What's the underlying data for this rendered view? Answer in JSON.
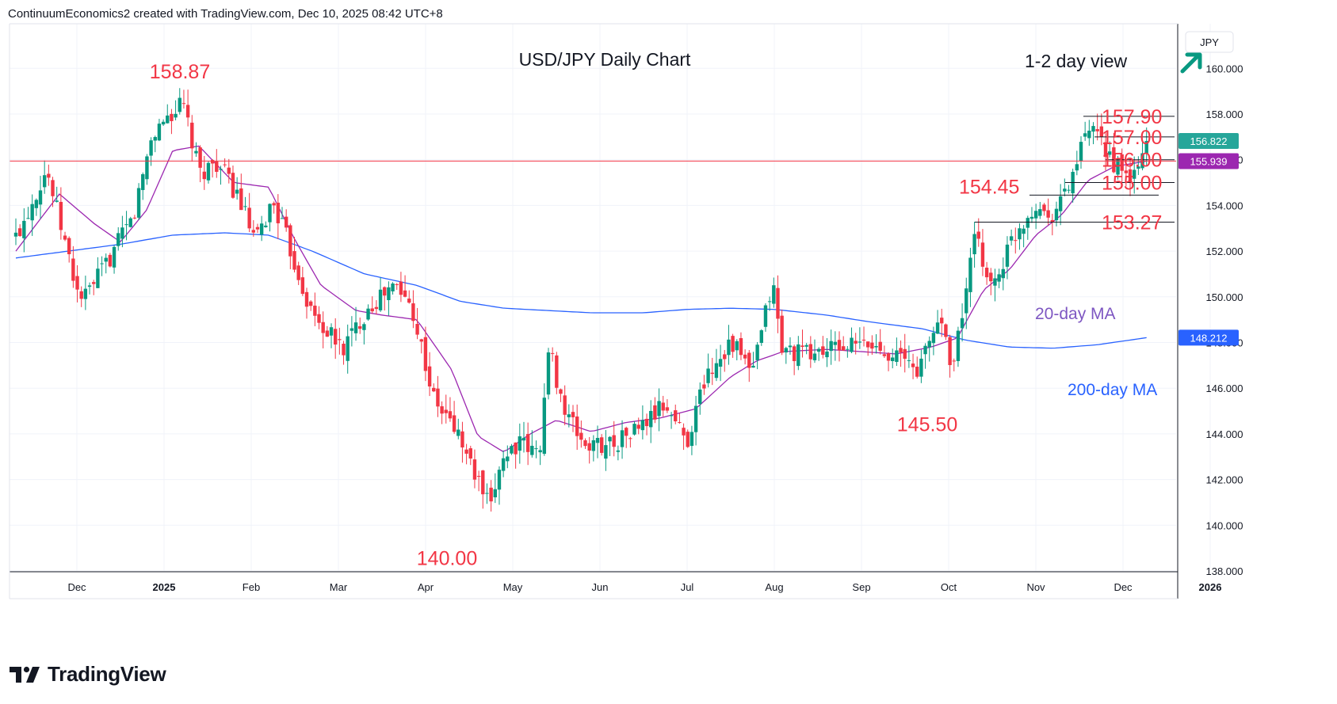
{
  "header": {
    "attribution": "ContinuumEconomics2 created with TradingView.com, Dec 10, 2025 08:42 UTC+8"
  },
  "brand": {
    "name": "TradingView",
    "logo_icon": "tradingview-logo-icon"
  },
  "chart_data": {
    "type": "candlestick",
    "title": "USD/JPY Daily Chart",
    "subtitle": "1-2 day view",
    "view_direction_icon": "arrow-up-right-icon",
    "currency_label": "JPY",
    "ylim": [
      138.0,
      161.3
    ],
    "y_ticks": [
      "138.000",
      "140.000",
      "142.000",
      "144.000",
      "146.000",
      "148.000",
      "150.000",
      "152.000",
      "154.000",
      "156.000",
      "158.000",
      "160.000"
    ],
    "x_ticks": [
      {
        "label": "Dec",
        "month_index": 0.7
      },
      {
        "label": "2025",
        "month_index": 1.7
      },
      {
        "label": "Feb",
        "month_index": 2.7
      },
      {
        "label": "Mar",
        "month_index": 3.7
      },
      {
        "label": "Apr",
        "month_index": 4.7
      },
      {
        "label": "May",
        "month_index": 5.7
      },
      {
        "label": "Jun",
        "month_index": 6.7
      },
      {
        "label": "Jul",
        "month_index": 7.7
      },
      {
        "label": "Aug",
        "month_index": 8.7
      },
      {
        "label": "Sep",
        "month_index": 9.7
      },
      {
        "label": "Oct",
        "month_index": 10.7
      },
      {
        "label": "Nov",
        "month_index": 11.7
      },
      {
        "label": "Dec",
        "month_index": 12.7
      },
      {
        "label": "2026",
        "month_index": 13.7
      }
    ],
    "price_close": {
      "text": "156.822",
      "value": 156.822,
      "color": "#26a69a"
    },
    "price_ma20": {
      "text": "155.939",
      "value": 155.939,
      "color": "#9c27b0"
    },
    "price_ma200": {
      "text": "148.212",
      "value": 148.212,
      "color": "#2962ff"
    },
    "horizontal_line": {
      "value": 155.94,
      "color": "#f23645"
    },
    "colors": {
      "up": "#089981",
      "down": "#f23645",
      "ma20": "#9c27b0",
      "ma200": "#2962ff",
      "annotation": "#f23645",
      "ma20_label": "#7e57c2",
      "ma200_label": "#2962ff",
      "arrow": "#089981",
      "grid": "#f0f3fa"
    },
    "annotations": [
      {
        "text": "158.87",
        "value": 158.87,
        "kind": "high"
      },
      {
        "text": "140.00",
        "value": 140.0,
        "kind": "low"
      },
      {
        "text": "145.50",
        "value": 145.5,
        "kind": "low"
      },
      {
        "text": "154.45",
        "value": 154.45,
        "kind": "level"
      },
      {
        "text": "157.90",
        "value": 157.9,
        "kind": "resistance"
      },
      {
        "text": "157.00",
        "value": 157.0,
        "kind": "resistance"
      },
      {
        "text": "156.00",
        "value": 156.0,
        "kind": "resistance"
      },
      {
        "text": "155.00",
        "value": 155.0,
        "kind": "support"
      },
      {
        "text": "153.27",
        "value": 153.27,
        "kind": "support"
      }
    ],
    "ma_labels": {
      "ma20": "20-day MA",
      "ma200": "200-day MA"
    },
    "anchors": [
      [
        0,
        152.6
      ],
      [
        0.35,
        155.6
      ],
      [
        0.7,
        150.3
      ],
      [
        0.78,
        149.9
      ],
      [
        1.0,
        151.2
      ],
      [
        1.35,
        153.5
      ],
      [
        1.55,
        156.9
      ],
      [
        1.7,
        157.8
      ],
      [
        1.92,
        158.4
      ],
      [
        2.1,
        155.4
      ],
      [
        2.3,
        155.9
      ],
      [
        2.55,
        154.4
      ],
      [
        2.75,
        152.3
      ],
      [
        2.95,
        154.2
      ],
      [
        3.1,
        152.6
      ],
      [
        3.4,
        149.2
      ],
      [
        3.75,
        147.7
      ],
      [
        4.05,
        149.6
      ],
      [
        4.35,
        150.5
      ],
      [
        4.55,
        149.5
      ],
      [
        4.8,
        145.4
      ],
      [
        5.05,
        144.2
      ],
      [
        5.3,
        141.9
      ],
      [
        5.45,
        140.6
      ],
      [
        5.55,
        142.8
      ],
      [
        5.75,
        143.6
      ],
      [
        6.0,
        143.1
      ],
      [
        6.12,
        147.8
      ],
      [
        6.3,
        144.9
      ],
      [
        6.55,
        143.4
      ],
      [
        6.9,
        143.7
      ],
      [
        7.2,
        144.4
      ],
      [
        7.45,
        145.3
      ],
      [
        7.7,
        143.7
      ],
      [
        7.9,
        146.4
      ],
      [
        8.2,
        148.1
      ],
      [
        8.45,
        146.6
      ],
      [
        8.68,
        150.7
      ],
      [
        8.78,
        147.7
      ],
      [
        9.1,
        147.5
      ],
      [
        9.45,
        147.8
      ],
      [
        9.75,
        147.9
      ],
      [
        10.05,
        147.6
      ],
      [
        10.35,
        146.8
      ],
      [
        10.6,
        149.2
      ],
      [
        10.75,
        146.9
      ],
      [
        11.0,
        152.6
      ],
      [
        11.2,
        150.4
      ],
      [
        11.45,
        152.7
      ],
      [
        11.7,
        154.1
      ],
      [
        11.85,
        153.5
      ],
      [
        12.05,
        154.6
      ],
      [
        12.3,
        157.3
      ],
      [
        12.5,
        156.5
      ],
      [
        12.7,
        155.2
      ],
      [
        12.85,
        155.3
      ],
      [
        12.97,
        156.82
      ]
    ],
    "ma20_anchors": [
      [
        0,
        152.0
      ],
      [
        0.5,
        154.5
      ],
      [
        0.9,
        153.2
      ],
      [
        1.2,
        152.4
      ],
      [
        1.5,
        153.8
      ],
      [
        1.8,
        156.4
      ],
      [
        2.1,
        156.6
      ],
      [
        2.5,
        155.0
      ],
      [
        2.9,
        154.8
      ],
      [
        3.2,
        152.5
      ],
      [
        3.5,
        150.5
      ],
      [
        3.9,
        149.4
      ],
      [
        4.2,
        149.2
      ],
      [
        4.6,
        149.0
      ],
      [
        5.0,
        146.8
      ],
      [
        5.3,
        143.9
      ],
      [
        5.6,
        143.2
      ],
      [
        5.9,
        144.0
      ],
      [
        6.2,
        144.6
      ],
      [
        6.6,
        144.1
      ],
      [
        7.0,
        144.5
      ],
      [
        7.4,
        144.7
      ],
      [
        7.8,
        145.1
      ],
      [
        8.2,
        146.5
      ],
      [
        8.5,
        147.2
      ],
      [
        8.8,
        147.6
      ],
      [
        9.3,
        147.7
      ],
      [
        9.7,
        147.6
      ],
      [
        10.1,
        147.5
      ],
      [
        10.5,
        147.8
      ],
      [
        10.8,
        148.2
      ],
      [
        11.1,
        150.3
      ],
      [
        11.4,
        151.2
      ],
      [
        11.7,
        152.7
      ],
      [
        12.0,
        153.6
      ],
      [
        12.3,
        155.1
      ],
      [
        12.6,
        155.7
      ],
      [
        12.97,
        155.94
      ]
    ],
    "ma200_anchors": [
      [
        0,
        151.7
      ],
      [
        0.6,
        152.0
      ],
      [
        1.2,
        152.3
      ],
      [
        1.8,
        152.7
      ],
      [
        2.4,
        152.8
      ],
      [
        2.9,
        152.7
      ],
      [
        3.4,
        152.0
      ],
      [
        4.0,
        151.0
      ],
      [
        4.6,
        150.5
      ],
      [
        5.1,
        149.8
      ],
      [
        5.6,
        149.5
      ],
      [
        6.1,
        149.4
      ],
      [
        6.6,
        149.3
      ],
      [
        7.2,
        149.3
      ],
      [
        7.7,
        149.45
      ],
      [
        8.2,
        149.5
      ],
      [
        8.7,
        149.45
      ],
      [
        9.3,
        149.2
      ],
      [
        9.8,
        148.9
      ],
      [
        10.4,
        148.6
      ],
      [
        10.9,
        148.1
      ],
      [
        11.4,
        147.8
      ],
      [
        11.9,
        147.75
      ],
      [
        12.4,
        147.9
      ],
      [
        12.97,
        148.21
      ]
    ]
  }
}
